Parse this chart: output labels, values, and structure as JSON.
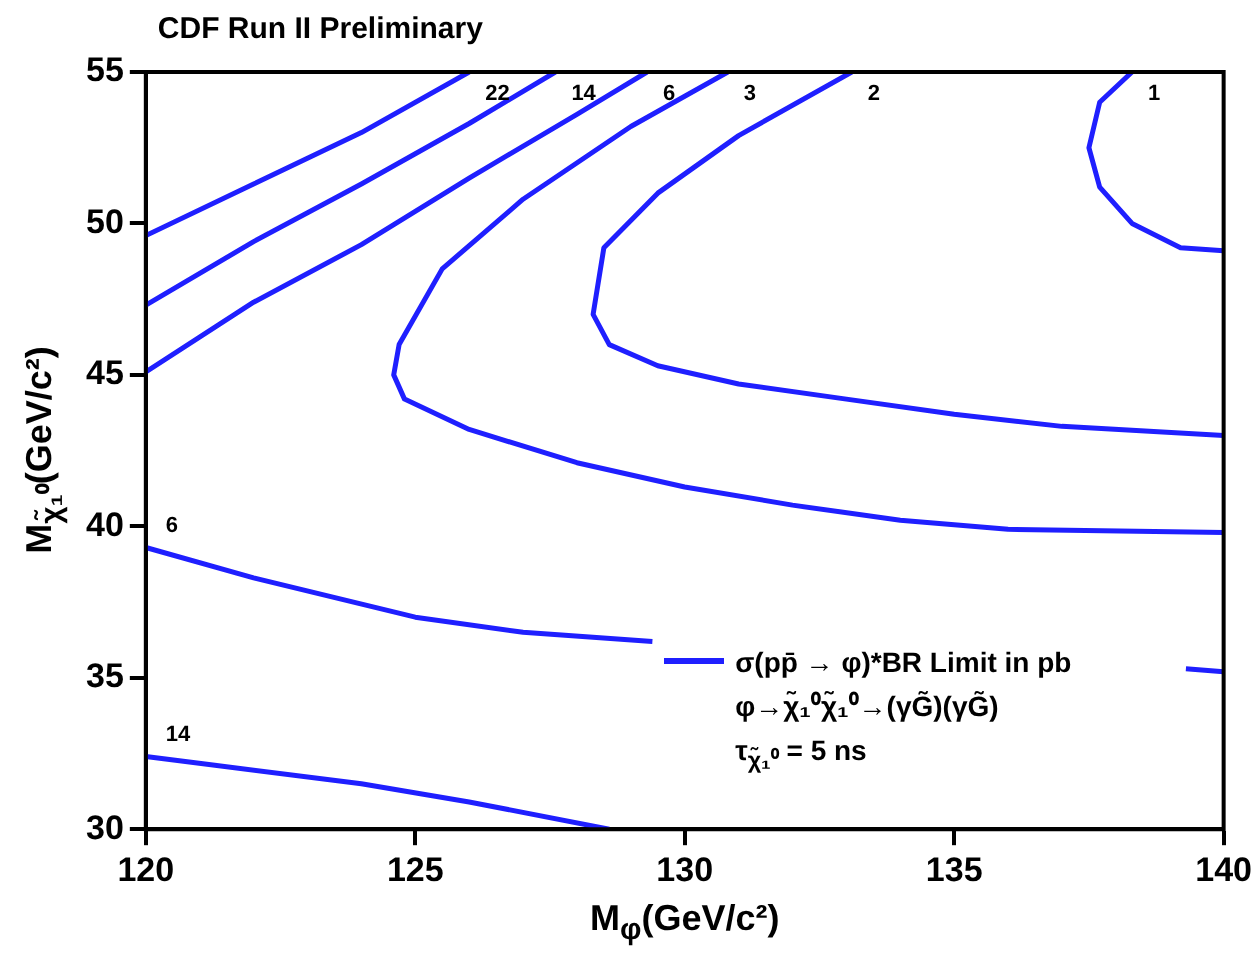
{
  "chart_data": {
    "type": "line",
    "title": "CDF Run II Preliminary",
    "xlabel": "M$_{φ}$(GeV/c²)",
    "ylabel": "M$_{χ̃₁⁰}$(GeV/c²)",
    "legend_title": "σ(pp̄ → φ)*BR Limit in pb",
    "annotations": [
      "φ→χ̃₁⁰χ̃₁⁰→(γG̃)(γG̃)",
      "τ$_{χ̃₁⁰}$ = 5 ns"
    ],
    "xlim": [
      120,
      140
    ],
    "xticks": [
      120,
      125,
      130,
      135,
      140
    ],
    "ylim": [
      30,
      55
    ],
    "yticks": [
      30,
      35,
      40,
      45,
      50,
      55
    ],
    "series": [
      {
        "name": "22",
        "color": "#1f1fff",
        "x": [
          120,
          122,
          124,
          126
        ],
        "values": [
          49.6,
          51.3,
          53,
          55
        ]
      },
      {
        "name": "14",
        "color": "#1f1fff",
        "x": [
          120,
          122,
          124,
          126,
          127.6,
          null,
          120,
          124,
          126,
          128.6
        ],
        "values": [
          47.3,
          49.4,
          51.3,
          53.3,
          55,
          null,
          32.4,
          31.5,
          30.9,
          30
        ]
      },
      {
        "name": "6",
        "color": "#1f1fff",
        "x": [
          120,
          122,
          124,
          126,
          128,
          129.3,
          null,
          120,
          122,
          125,
          127,
          129.4,
          null,
          139.3,
          140
        ],
        "values": [
          45.1,
          47.4,
          49.3,
          51.5,
          53.6,
          55,
          null,
          39.3,
          38.3,
          37,
          36.5,
          36.2,
          null,
          35.3,
          35.2
        ]
      },
      {
        "name": "3",
        "color": "#1f1fff",
        "x": [
          130.8,
          129,
          127,
          125.5,
          124.7,
          124.6,
          124.8,
          126,
          128,
          130,
          132,
          134,
          136,
          140
        ],
        "values": [
          55,
          53.2,
          50.8,
          48.5,
          46,
          45,
          44.2,
          43.2,
          42.1,
          41.3,
          40.7,
          40.2,
          39.9,
          39.8
        ]
      },
      {
        "name": "2",
        "color": "#1f1fff",
        "x": [
          133.1,
          131,
          129.5,
          128.5,
          128.3,
          128.6,
          129.5,
          131,
          133,
          135,
          137,
          140
        ],
        "values": [
          55,
          52.9,
          51,
          49.2,
          47,
          46,
          45.3,
          44.7,
          44.2,
          43.7,
          43.3,
          43
        ]
      },
      {
        "name": "1",
        "color": "#1f1fff",
        "x": [
          138.3,
          137.7,
          137.5,
          137.7,
          138.3,
          139.2,
          140
        ],
        "values": [
          55,
          54,
          52.5,
          51.2,
          50,
          49.2,
          49.1
        ]
      }
    ]
  }
}
